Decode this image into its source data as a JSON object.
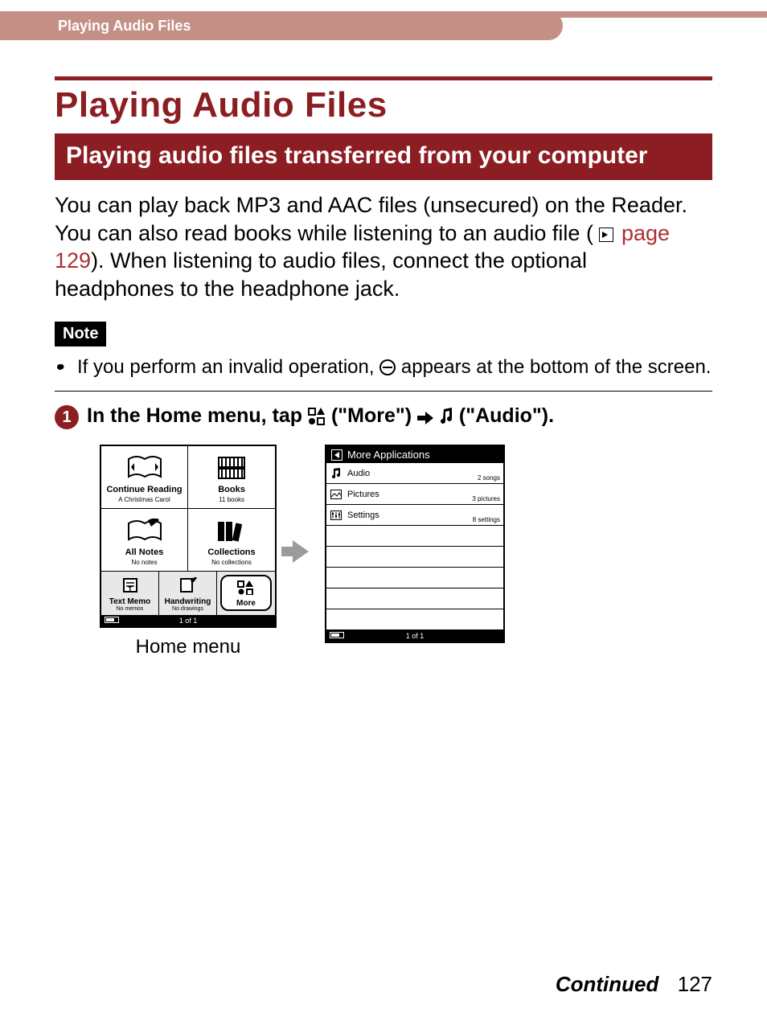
{
  "colors": {
    "brand": "#8c1e23",
    "header_tab": "#c48f85",
    "link": "#ad2e33",
    "text": "#000000",
    "bg": "#ffffff"
  },
  "header": {
    "breadcrumb": "Playing Audio Files"
  },
  "title": "Playing Audio Files",
  "section": "Playing audio files transferred from your computer",
  "intro": {
    "part1": "You can play back MP3 and AAC files (unsecured) on the Reader. You can also read books while listening to an audio file (",
    "page_ref": "page 129",
    "part2": "). When listening to audio files, connect the optional headphones to the headphone jack."
  },
  "note": {
    "label": "Note",
    "item_before": "If you perform an invalid operation, ",
    "item_after": " appears at the bottom of the screen."
  },
  "step": {
    "number": "1",
    "before": "In the Home menu, tap ",
    "more_label": " (\"More\") ",
    "audio_label": " (\"Audio\")."
  },
  "home_menu": {
    "caption": "Home menu",
    "status": "1 of 1",
    "cells": [
      {
        "title": "Continue Reading",
        "sub": "A Christmas Carol"
      },
      {
        "title": "Books",
        "sub": "11 books"
      },
      {
        "title": "All Notes",
        "sub": "No notes"
      },
      {
        "title": "Collections",
        "sub": "No collections"
      }
    ],
    "bottom": [
      {
        "title": "Text Memo",
        "sub": "No memos"
      },
      {
        "title": "Handwriting",
        "sub": "No drawings"
      },
      {
        "title": "More",
        "sub": ""
      }
    ]
  },
  "more_apps": {
    "header": "More Applications",
    "status": "1 of 1",
    "rows": [
      {
        "label": "Audio",
        "count": "2 songs"
      },
      {
        "label": "Pictures",
        "count": "3 pictures"
      },
      {
        "label": "Settings",
        "count": "8 settings"
      }
    ],
    "empty_rows": 5
  },
  "footer": {
    "continued": "Continued",
    "page": "127"
  }
}
